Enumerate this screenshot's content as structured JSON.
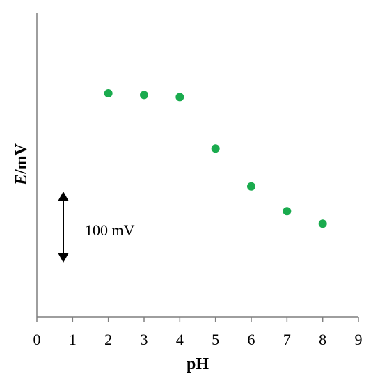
{
  "chart_data": {
    "type": "scatter",
    "title": "",
    "xlabel": "pH",
    "ylabel_italic": "E",
    "ylabel_rest": "/mV",
    "xlim": [
      0,
      9
    ],
    "x_ticks": [
      "0",
      "1",
      "2",
      "3",
      "4",
      "5",
      "6",
      "7",
      "8",
      "9"
    ],
    "y_ticks_shown": false,
    "grid": false,
    "legend": "none",
    "marker_color": "#1aab4e",
    "series": [
      {
        "x": [
          2,
          3,
          4,
          5,
          6,
          7,
          8
        ],
        "y": [
          160,
          156,
          151,
          28,
          -63,
          -122,
          -152
        ]
      }
    ],
    "scale_bar": {
      "label": "100 mV",
      "span": 170
    }
  }
}
